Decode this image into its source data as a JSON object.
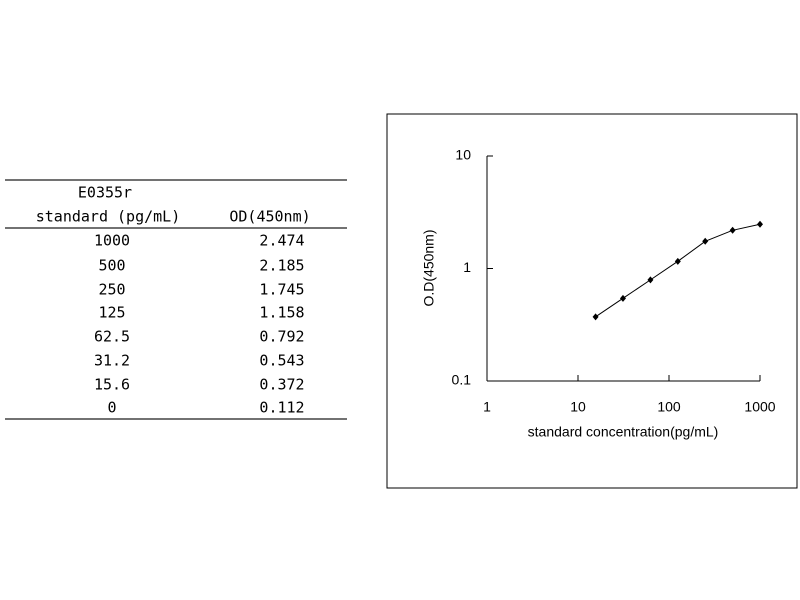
{
  "table": {
    "caption": "E0355r",
    "columns": [
      "standard (pg/mL)",
      "OD(450nm)"
    ],
    "rows": [
      [
        "1000",
        "2.474"
      ],
      [
        "500",
        "2.185"
      ],
      [
        "250",
        "1.745"
      ],
      [
        "125",
        "1.158"
      ],
      [
        "62.5",
        "0.792"
      ],
      [
        "31.2",
        "0.543"
      ],
      [
        "15.6",
        "0.372"
      ],
      [
        "0",
        "0.112"
      ]
    ]
  },
  "chart_data": {
    "type": "line",
    "x_label": "standard concentration(pg/mL)",
    "y_label": "O.D(450nm)",
    "x": [
      15.6,
      31.2,
      62.5,
      125,
      250,
      500,
      1000
    ],
    "values": [
      0.372,
      0.543,
      0.792,
      1.158,
      1.745,
      2.185,
      2.474
    ],
    "color": "#000000",
    "xscale": "log",
    "yscale": "log",
    "xlim": [
      1,
      1000
    ],
    "ylim": [
      0.1,
      10
    ],
    "xticks": [
      1,
      10,
      100,
      1000
    ],
    "yticks": [
      0.1,
      1,
      10
    ]
  }
}
